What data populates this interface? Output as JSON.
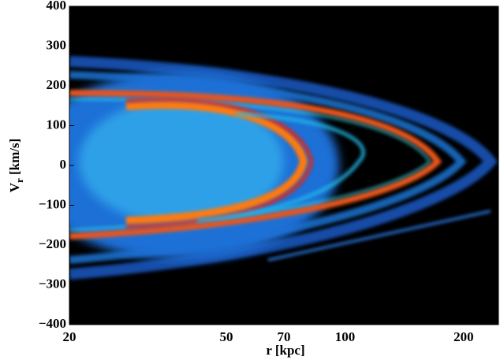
{
  "chart_data": {
    "type": "density",
    "xlabel": "r [kpc]",
    "ylabel": [
      "V",
      "r",
      " [km/s]"
    ],
    "xscale": "log",
    "xlim": [
      20,
      245
    ],
    "xticks": [
      20,
      50,
      70,
      100,
      200
    ],
    "ylim": [
      -400,
      400
    ],
    "yticks": [
      {
        "value": -400,
        "label": "−400"
      },
      {
        "value": -300,
        "label": "−300"
      },
      {
        "value": -200,
        "label": "−200"
      },
      {
        "value": -100,
        "label": "−100"
      },
      0,
      100,
      200,
      300,
      400
    ]
  }
}
